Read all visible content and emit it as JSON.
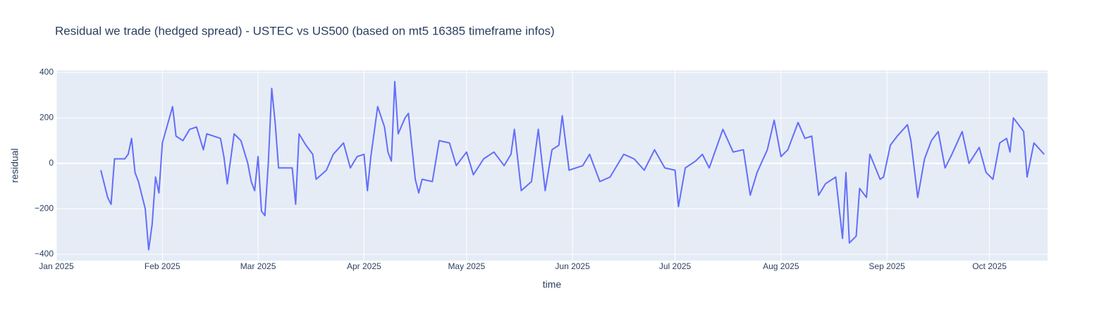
{
  "chart_data": {
    "type": "line",
    "title": "Residual we trade (hedged spread) - USTEC vs US500 (based on mt5 16385 timeframe infos)",
    "x_label": "time",
    "y_label": "residual",
    "x": [
      "2025-01-14",
      "2025-01-15",
      "2025-01-16",
      "2025-01-17",
      "2025-01-18",
      "2025-01-21",
      "2025-01-22",
      "2025-01-23",
      "2025-01-24",
      "2025-01-25",
      "2025-01-27",
      "2025-01-28",
      "2025-01-29",
      "2025-01-30",
      "2025-01-31",
      "2025-02-01",
      "2025-02-04",
      "2025-02-05",
      "2025-02-07",
      "2025-02-09",
      "2025-02-11",
      "2025-02-13",
      "2025-02-14",
      "2025-02-16",
      "2025-02-18",
      "2025-02-19",
      "2025-02-20",
      "2025-02-22",
      "2025-02-24",
      "2025-02-26",
      "2025-02-27",
      "2025-02-28",
      "2025-03-01",
      "2025-03-02",
      "2025-03-03",
      "2025-03-04",
      "2025-03-05",
      "2025-03-06",
      "2025-03-07",
      "2025-03-11",
      "2025-03-12",
      "2025-03-13",
      "2025-03-15",
      "2025-03-17",
      "2025-03-18",
      "2025-03-21",
      "2025-03-23",
      "2025-03-26",
      "2025-03-28",
      "2025-03-30",
      "2025-04-01",
      "2025-04-02",
      "2025-04-03",
      "2025-04-05",
      "2025-04-07",
      "2025-04-08",
      "2025-04-09",
      "2025-04-10",
      "2025-04-11",
      "2025-04-13",
      "2025-04-14",
      "2025-04-16",
      "2025-04-17",
      "2025-04-18",
      "2025-04-21",
      "2025-04-23",
      "2025-04-26",
      "2025-04-28",
      "2025-05-01",
      "2025-05-03",
      "2025-05-06",
      "2025-05-09",
      "2025-05-12",
      "2025-05-14",
      "2025-05-15",
      "2025-05-17",
      "2025-05-20",
      "2025-05-22",
      "2025-05-24",
      "2025-05-26",
      "2025-05-28",
      "2025-05-29",
      "2025-05-31",
      "2025-06-04",
      "2025-06-06",
      "2025-06-09",
      "2025-06-12",
      "2025-06-16",
      "2025-06-19",
      "2025-06-22",
      "2025-06-25",
      "2025-06-28",
      "2025-07-01",
      "2025-07-02",
      "2025-07-04",
      "2025-07-07",
      "2025-07-09",
      "2025-07-11",
      "2025-07-15",
      "2025-07-18",
      "2025-07-21",
      "2025-07-23",
      "2025-07-25",
      "2025-07-28",
      "2025-07-30",
      "2025-08-01",
      "2025-08-03",
      "2025-08-06",
      "2025-08-08",
      "2025-08-10",
      "2025-08-12",
      "2025-08-14",
      "2025-08-17",
      "2025-08-19",
      "2025-08-20",
      "2025-08-21",
      "2025-08-23",
      "2025-08-24",
      "2025-08-26",
      "2025-08-27",
      "2025-08-30",
      "2025-08-31",
      "2025-09-02",
      "2025-09-04",
      "2025-09-07",
      "2025-09-08",
      "2025-09-10",
      "2025-09-12",
      "2025-09-14",
      "2025-09-16",
      "2025-09-18",
      "2025-09-20",
      "2025-09-23",
      "2025-09-25",
      "2025-09-28",
      "2025-09-30",
      "2025-10-02",
      "2025-10-04",
      "2025-10-06",
      "2025-10-07",
      "2025-10-08",
      "2025-10-11",
      "2025-10-12",
      "2025-10-14",
      "2025-10-17"
    ],
    "series": [
      {
        "color": "#636efa",
        "values": [
          -30,
          -90,
          -150,
          -180,
          20,
          20,
          40,
          110,
          -40,
          -80,
          -200,
          -380,
          -270,
          -60,
          -130,
          90,
          250,
          120,
          100,
          150,
          160,
          60,
          130,
          120,
          110,
          30,
          -90,
          130,
          100,
          0,
          -80,
          -120,
          30,
          -210,
          -230,
          0,
          330,
          180,
          -20,
          -20,
          -180,
          130,
          80,
          40,
          -70,
          -30,
          40,
          90,
          -20,
          30,
          40,
          -120,
          30,
          250,
          160,
          50,
          10,
          360,
          130,
          200,
          220,
          -70,
          -130,
          -70,
          -80,
          100,
          90,
          -10,
          50,
          -50,
          20,
          50,
          -10,
          40,
          150,
          -120,
          -80,
          150,
          -120,
          60,
          80,
          210,
          -30,
          -10,
          40,
          -80,
          -60,
          40,
          20,
          -30,
          60,
          -20,
          -30,
          -190,
          -20,
          10,
          40,
          -20,
          150,
          50,
          60,
          -140,
          -40,
          60,
          190,
          30,
          60,
          180,
          110,
          120,
          -140,
          -90,
          -60,
          -330,
          -40,
          -350,
          -320,
          -110,
          -150,
          40,
          -70,
          -60,
          80,
          120,
          170,
          100,
          -150,
          20,
          100,
          140,
          -20,
          40,
          140,
          0,
          70,
          -40,
          -70,
          90,
          110,
          50,
          200,
          140,
          -60,
          90,
          40
        ]
      }
    ],
    "xlim": [
      "2025-01-01",
      "2025-10-18"
    ],
    "xticks": [
      {
        "value": "2025-01-01",
        "label": "Jan 2025"
      },
      {
        "value": "2025-02-01",
        "label": "Feb 2025"
      },
      {
        "value": "2025-03-01",
        "label": "Mar 2025"
      },
      {
        "value": "2025-04-01",
        "label": "Apr 2025"
      },
      {
        "value": "2025-05-01",
        "label": "May 2025"
      },
      {
        "value": "2025-06-01",
        "label": "Jun 2025"
      },
      {
        "value": "2025-07-01",
        "label": "Jul 2025"
      },
      {
        "value": "2025-08-01",
        "label": "Aug 2025"
      },
      {
        "value": "2025-09-01",
        "label": "Sep 2025"
      },
      {
        "value": "2025-10-01",
        "label": "Oct 2025"
      }
    ],
    "ylim": [
      -428,
      409
    ],
    "yticks": [
      {
        "value": -400,
        "label": "−400"
      },
      {
        "value": -200,
        "label": "−200"
      },
      0,
      200,
      400
    ],
    "grid": true,
    "plot_bgcolor": "#e5ecf6"
  }
}
